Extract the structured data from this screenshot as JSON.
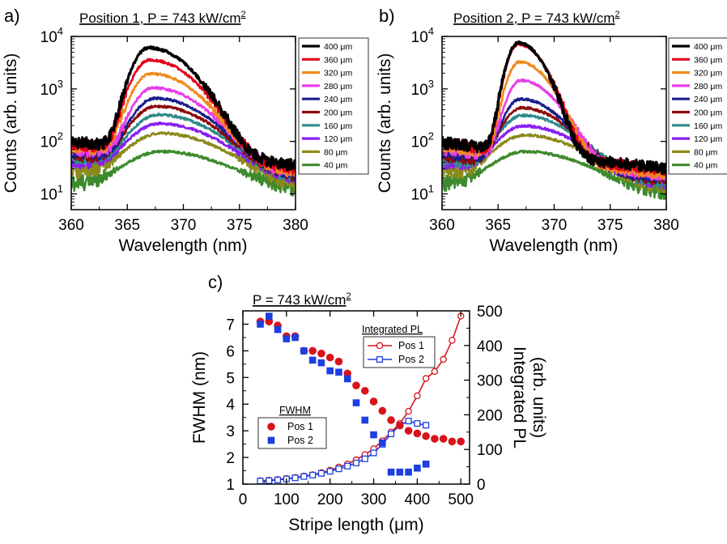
{
  "figure": {
    "panels": [
      {
        "id": "a",
        "label": "a)",
        "title_main": "Position 1, P = 743 kW/cm",
        "title_sup": "2"
      },
      {
        "id": "b",
        "label": "b)",
        "title_main": "Position 2, P = 743 kW/cm",
        "title_sup": "2"
      },
      {
        "id": "c",
        "label": "c)",
        "title_main": "P = 743 kW/cm",
        "title_sup": "2"
      }
    ]
  },
  "chart_data": [
    {
      "panel": "a",
      "type": "line",
      "xlabel": "Wavelength (nm)",
      "ylabel": "Counts (arb. units)",
      "xlim": [
        360,
        380
      ],
      "ylim": [
        5,
        10000
      ],
      "yscale": "log",
      "xticks": [
        "360",
        "365",
        "370",
        "375",
        "380"
      ],
      "yticks": [
        {
          "base": "10",
          "exp": "1"
        },
        {
          "base": "10",
          "exp": "2"
        },
        {
          "base": "10",
          "exp": "3"
        },
        {
          "base": "10",
          "exp": "4"
        }
      ],
      "legend_position": "right",
      "series": [
        {
          "name": "400 μm",
          "color": "#000000",
          "peak_nm": 366.9,
          "peak": 6000,
          "left_bg": 100,
          "right_bg": 35,
          "hwhm_left": 1.3,
          "hwhm_right": 3.2
        },
        {
          "name": "360 μm",
          "color": "#e3001b",
          "peak_nm": 367.0,
          "peak": 3500,
          "left_bg": 90,
          "right_bg": 30,
          "hwhm_left": 1.4,
          "hwhm_right": 3.4
        },
        {
          "name": "320 μm",
          "color": "#f08a1c",
          "peak_nm": 367.1,
          "peak": 1900,
          "left_bg": 80,
          "right_bg": 26,
          "hwhm_left": 1.5,
          "hwhm_right": 3.6
        },
        {
          "name": "280 μm",
          "color": "#e83fe8",
          "peak_nm": 367.3,
          "peak": 1000,
          "left_bg": 70,
          "right_bg": 24,
          "hwhm_left": 1.6,
          "hwhm_right": 3.9
        },
        {
          "name": "240 μm",
          "color": "#1b1f8c",
          "peak_nm": 367.5,
          "peak": 620,
          "left_bg": 62,
          "right_bg": 22,
          "hwhm_left": 1.8,
          "hwhm_right": 4.1
        },
        {
          "name": "200 μm",
          "color": "#8b0a0a",
          "peak_nm": 367.6,
          "peak": 430,
          "left_bg": 55,
          "right_bg": 20,
          "hwhm_left": 2.0,
          "hwhm_right": 4.3
        },
        {
          "name": "160 μm",
          "color": "#2e8b8b",
          "peak_nm": 367.8,
          "peak": 290,
          "left_bg": 48,
          "right_bg": 18,
          "hwhm_left": 2.2,
          "hwhm_right": 4.5
        },
        {
          "name": "120 μm",
          "color": "#8a1df0",
          "peak_nm": 367.9,
          "peak": 190,
          "left_bg": 40,
          "right_bg": 17,
          "hwhm_left": 2.4,
          "hwhm_right": 4.7
        },
        {
          "name": "80 μm",
          "color": "#8c8a1c",
          "peak_nm": 368.0,
          "peak": 120,
          "left_bg": 30,
          "right_bg": 15,
          "hwhm_left": 2.6,
          "hwhm_right": 4.9
        },
        {
          "name": "40 μm",
          "color": "#3d8a2c",
          "peak_nm": 368.1,
          "peak": 50,
          "left_bg": 16,
          "right_bg": 12,
          "hwhm_left": 3.0,
          "hwhm_right": 5.2
        }
      ]
    },
    {
      "panel": "b",
      "type": "line",
      "xlabel": "Wavelength (nm)",
      "ylabel": "Counts (arb. units)",
      "xlim": [
        360,
        380
      ],
      "ylim": [
        5,
        10000
      ],
      "yscale": "log",
      "xticks": [
        "360",
        "365",
        "370",
        "375",
        "380"
      ],
      "yticks": [
        {
          "base": "10",
          "exp": "1"
        },
        {
          "base": "10",
          "exp": "2"
        },
        {
          "base": "10",
          "exp": "3"
        },
        {
          "base": "10",
          "exp": "4"
        }
      ],
      "legend_position": "right",
      "series": [
        {
          "name": "400 μm",
          "color": "#000000",
          "peak_nm": 366.8,
          "peak": 7500,
          "left_bg": 95,
          "right_bg": 30,
          "hwhm_left": 0.9,
          "hwhm_right": 1.9
        },
        {
          "name": "360 μm",
          "color": "#e3001b",
          "peak_nm": 366.8,
          "peak": 7000,
          "left_bg": 90,
          "right_bg": 28,
          "hwhm_left": 0.9,
          "hwhm_right": 2.0
        },
        {
          "name": "320 μm",
          "color": "#f08a1c",
          "peak_nm": 366.9,
          "peak": 3200,
          "left_bg": 80,
          "right_bg": 24,
          "hwhm_left": 1.0,
          "hwhm_right": 2.3
        },
        {
          "name": "280 μm",
          "color": "#e83fe8",
          "peak_nm": 367.0,
          "peak": 1400,
          "left_bg": 70,
          "right_bg": 22,
          "hwhm_left": 1.1,
          "hwhm_right": 2.7
        },
        {
          "name": "240 μm",
          "color": "#1b1f8c",
          "peak_nm": 367.0,
          "peak": 600,
          "left_bg": 60,
          "right_bg": 20,
          "hwhm_left": 1.3,
          "hwhm_right": 3.1
        },
        {
          "name": "200 μm",
          "color": "#8b0a0a",
          "peak_nm": 367.1,
          "peak": 400,
          "left_bg": 52,
          "right_bg": 18,
          "hwhm_left": 1.5,
          "hwhm_right": 3.5
        },
        {
          "name": "160 μm",
          "color": "#2e8b8b",
          "peak_nm": 367.2,
          "peak": 280,
          "left_bg": 45,
          "right_bg": 16,
          "hwhm_left": 1.8,
          "hwhm_right": 3.9
        },
        {
          "name": "120 μm",
          "color": "#8a1df0",
          "peak_nm": 367.3,
          "peak": 170,
          "left_bg": 38,
          "right_bg": 15,
          "hwhm_left": 2.1,
          "hwhm_right": 4.3
        },
        {
          "name": "80 μm",
          "color": "#8c8a1c",
          "peak_nm": 367.4,
          "peak": 110,
          "left_bg": 28,
          "right_bg": 14,
          "hwhm_left": 2.4,
          "hwhm_right": 4.6
        },
        {
          "name": "40 μm",
          "color": "#3d8a2c",
          "peak_nm": 367.5,
          "peak": 50,
          "left_bg": 16,
          "right_bg": 11,
          "hwhm_left": 2.8,
          "hwhm_right": 5.0
        }
      ]
    },
    {
      "panel": "c",
      "type": "scatter",
      "xlabel": "Stripe length (μm)",
      "ylabel": "FWHM (nm)",
      "y2label_line1": "Integrated PL",
      "y2label_line2": "(arb. units)",
      "xlim": [
        0,
        520
      ],
      "ylim": [
        1,
        7.5
      ],
      "y2lim": [
        0,
        500
      ],
      "xticks": [
        "0",
        "100",
        "200",
        "300",
        "400",
        "500"
      ],
      "yticks": [
        "1",
        "2",
        "3",
        "4",
        "5",
        "6",
        "7"
      ],
      "y2ticks": [
        "0",
        "100",
        "200",
        "300",
        "400",
        "500"
      ],
      "legend_integrated": {
        "title": "Integrated PL",
        "items": [
          "Pos 1",
          "Pos 2"
        ]
      },
      "legend_fwhm": {
        "title": "FWHM",
        "items": [
          "Pos 1",
          "Pos 2"
        ]
      },
      "fwhm_pos1": {
        "name": "Pos 1",
        "color": "#d7141a",
        "x": [
          40,
          60,
          80,
          100,
          120,
          140,
          160,
          180,
          200,
          220,
          240,
          260,
          280,
          300,
          320,
          340,
          360,
          380,
          400,
          420,
          440,
          460,
          480,
          500
        ],
        "y": [
          7.1,
          7.1,
          6.95,
          6.55,
          6.55,
          6.0,
          6.0,
          5.9,
          5.75,
          5.6,
          5.15,
          4.7,
          4.5,
          4.1,
          3.75,
          3.4,
          3.2,
          3.0,
          2.9,
          2.8,
          2.7,
          2.7,
          2.6,
          2.6
        ]
      },
      "fwhm_pos2": {
        "name": "Pos 2",
        "color": "#1b3fe0",
        "x": [
          40,
          60,
          80,
          100,
          120,
          140,
          160,
          180,
          200,
          220,
          240,
          260,
          280,
          300,
          320,
          340,
          360,
          380,
          400,
          420
        ],
        "y": [
          7.0,
          7.3,
          6.8,
          6.45,
          6.5,
          6.0,
          5.65,
          5.55,
          5.25,
          5.2,
          4.95,
          4.05,
          3.4,
          2.85,
          2.55,
          1.45,
          1.45,
          1.45,
          1.6,
          1.75
        ]
      },
      "ipl_pos1": {
        "name": "Pos 1",
        "color": "#d7141a",
        "x": [
          40,
          60,
          80,
          100,
          120,
          140,
          160,
          180,
          200,
          220,
          240,
          260,
          280,
          300,
          320,
          340,
          360,
          380,
          400,
          420,
          440,
          460,
          480,
          500
        ],
        "y": [
          10,
          11,
          13,
          16,
          19,
          23,
          27,
          33,
          40,
          49,
          58,
          70,
          85,
          102,
          125,
          150,
          175,
          210,
          255,
          305,
          325,
          360,
          415,
          485
        ]
      },
      "ipl_pos2": {
        "name": "Pos 2",
        "color": "#1b3fe0",
        "x": [
          40,
          60,
          80,
          100,
          120,
          140,
          160,
          180,
          200,
          220,
          240,
          260,
          280,
          300,
          320,
          340,
          360,
          380,
          400,
          420
        ],
        "y": [
          9,
          10,
          12,
          15,
          18,
          22,
          26,
          31,
          37,
          44,
          52,
          61,
          73,
          90,
          115,
          145,
          170,
          182,
          175,
          170
        ]
      }
    }
  ]
}
